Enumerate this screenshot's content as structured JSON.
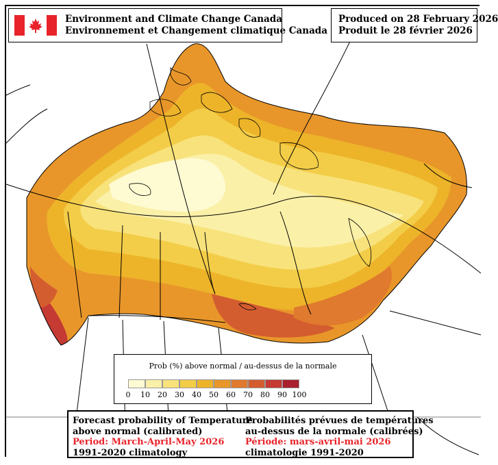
{
  "header": {
    "agency_en": "Environment and Climate Change Canada",
    "agency_fr": "Environnement et Changement climatique Canada",
    "produced_en": "Produced on 28 February 2026",
    "produced_fr": "Produit le 28 février 2026"
  },
  "flag": {
    "icon": "canada-flag-icon",
    "red": "#e8232a"
  },
  "legend": {
    "title": "Prob (%) above normal / au-dessus de la normale",
    "ticks": [
      "0",
      "10",
      "20",
      "30",
      "40",
      "50",
      "60",
      "70",
      "80",
      "90",
      "100"
    ],
    "colors": [
      "#fefbd2",
      "#fbf0a8",
      "#f8e27c",
      "#f3cd48",
      "#edb42a",
      "#e8962a",
      "#e07a2e",
      "#d45d30",
      "#c53a32",
      "#a9202e"
    ]
  },
  "caption": {
    "en_line1": "Forecast probability of Temperature",
    "en_line2": "above normal (calibrated)",
    "en_period": "Period: March-April-May 2026",
    "en_clim": "1991-2020 climatology",
    "fr_line1": "Probabilités prévues de températures",
    "fr_line2": "au-dessus de la normale (calibrées)",
    "fr_period": "Période: mars-avril-mai 2026",
    "fr_clim": "climatologie 1991-2020"
  }
}
